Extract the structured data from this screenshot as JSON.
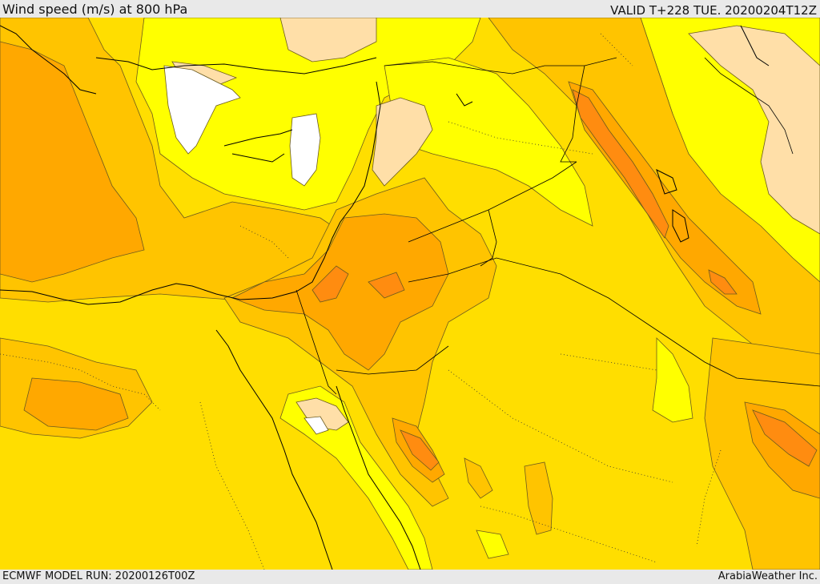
{
  "header": {
    "title": "Wind speed (m/s) at 800 hPa",
    "valid": "VALID T+228 TUE. 20200204T12Z"
  },
  "footer": {
    "model_run": "ECMWF MODEL RUN: 20200126T00Z",
    "credit": "ArabiaWeather Inc."
  },
  "colors": {
    "white": "#ffffff",
    "peach": "#ffdfa8",
    "light_yellow": "#ffff00",
    "yellow": "#ffde00",
    "light_orange": "#ffc400",
    "orange": "#ffa800",
    "dark_orange": "#ff8c10",
    "deep_orange": "#f07010",
    "contour": "#6b5a1e",
    "border": "#000000"
  }
}
